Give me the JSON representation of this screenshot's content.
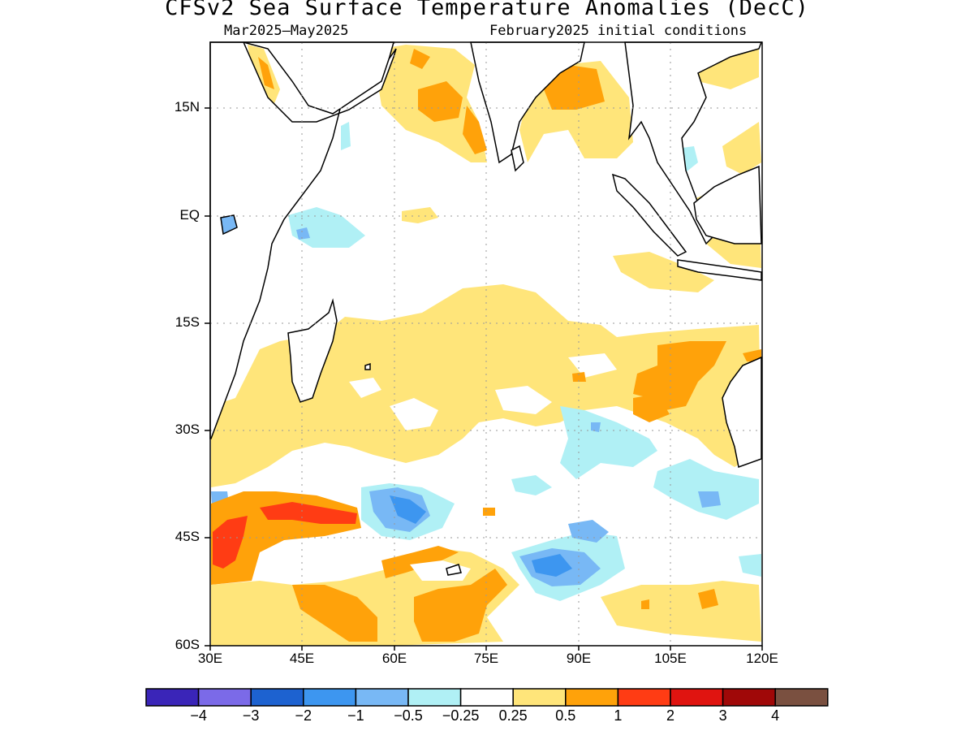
{
  "title": "CFSv2 Sea Surface Temperature Anomalies (DecC)",
  "subtitle_left": "Mar2025—May2025",
  "subtitle_right": "February2025 initial conditions",
  "lat_labels": [
    "15N",
    "EQ",
    "15S",
    "30S",
    "45S",
    "60S"
  ],
  "lon_labels": [
    "30E",
    "45E",
    "60E",
    "75E",
    "90E",
    "105E",
    "120E"
  ],
  "legend": {
    "colors": [
      "#3a25b8",
      "#7b6ae8",
      "#1d62d0",
      "#3d96f0",
      "#78b8f5",
      "#b0f0f5",
      "#ffffff",
      "#ffe57a",
      "#ffa20a",
      "#ff3c14",
      "#e01410",
      "#a00808",
      "#7a5040"
    ],
    "labels": [
      "−4",
      "−3",
      "−2",
      "−1",
      "−0.5",
      "−0.25",
      "0.25",
      "0.5",
      "1",
      "2",
      "3",
      "4"
    ]
  },
  "map_colors": {
    "pale_yellow": "#ffe57a",
    "orange": "#ffa20a",
    "red_orange": "#ff3c14",
    "light_cyan": "#b0f0f5",
    "light_blue": "#78b8f5",
    "blue": "#3d96f0"
  }
}
